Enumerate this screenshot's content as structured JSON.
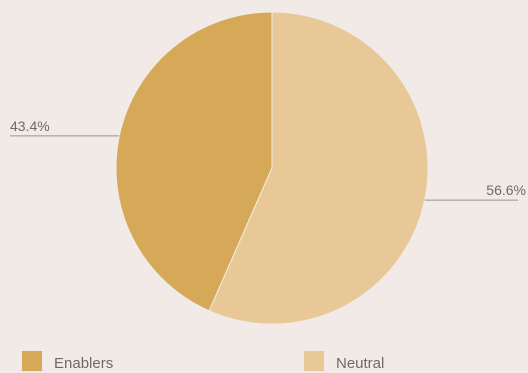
{
  "chart_data": {
    "type": "pie",
    "slices": [
      {
        "label": "Enablers",
        "value": 43.4,
        "display": "43.4%",
        "color": "#d5a958"
      },
      {
        "label": "Neutral",
        "value": 56.6,
        "display": "56.6%",
        "color": "#e8c896"
      }
    ],
    "legend_position": "bottom",
    "start_angle_deg": 0,
    "direction": "counterclockwise"
  },
  "colors": {
    "background": "#f1eae7",
    "text": "#6f6a66",
    "leader_line": "#9a948f",
    "slice_stroke": "#f1eae7"
  }
}
